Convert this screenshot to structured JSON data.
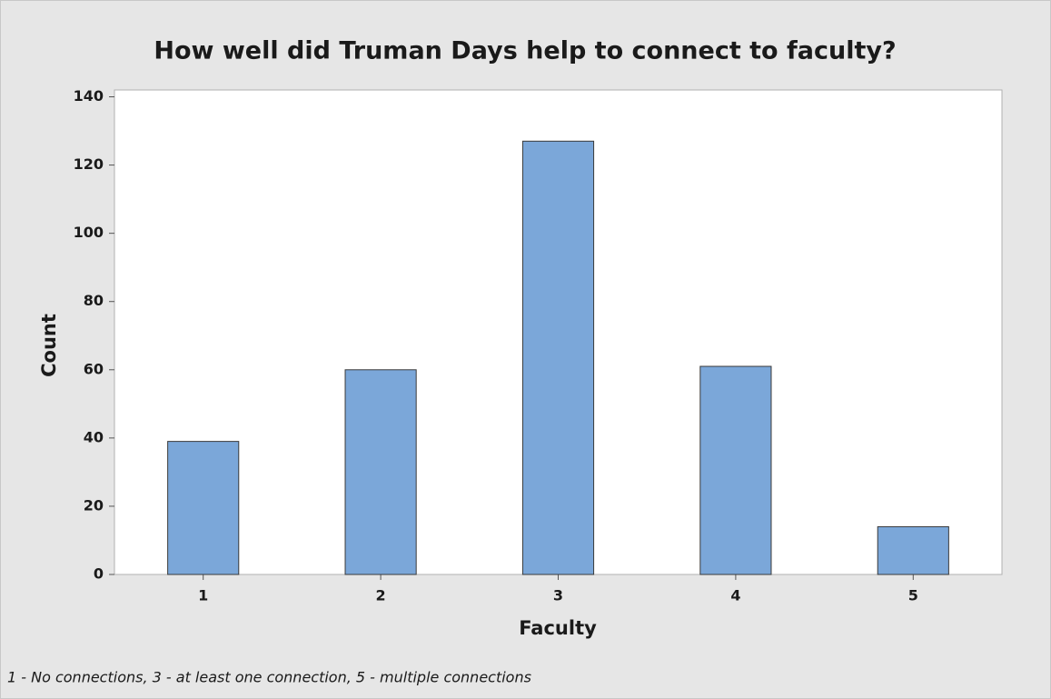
{
  "chart_data": {
    "type": "bar",
    "title": "How well did Truman Days help to connect to faculty?",
    "x_label": "Faculty",
    "y_label": "Count",
    "footnote": "1 - No connections, 3 - at least one connection, 5 - multiple connections",
    "categories": [
      "1",
      "2",
      "3",
      "4",
      "5"
    ],
    "values": [
      39,
      60,
      127,
      61,
      14
    ],
    "color": "#7ba7d9",
    "ylim": [
      0,
      142
    ],
    "yticks": [
      0,
      20,
      40,
      60,
      80,
      100,
      120,
      140
    ],
    "grid": false
  }
}
